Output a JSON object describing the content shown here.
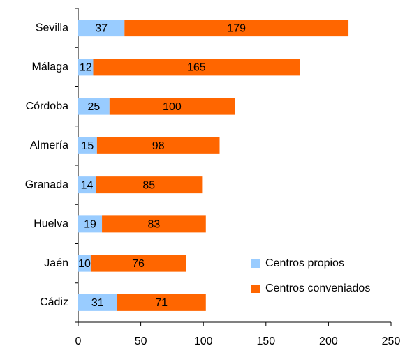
{
  "chart_data": {
    "type": "stacked_barh",
    "categories": [
      "Sevilla",
      "Málaga",
      "Córdoba",
      "Almería",
      "Granada",
      "Huelva",
      "Jaén",
      "Cádiz"
    ],
    "series": [
      {
        "name": "Centros propios",
        "color": "#99ccff",
        "values": [
          37,
          12,
          25,
          15,
          14,
          19,
          10,
          31
        ]
      },
      {
        "name": "Centros conveniados",
        "color": "#ff6600",
        "values": [
          179,
          165,
          100,
          98,
          85,
          83,
          76,
          71
        ]
      }
    ],
    "xlim": [
      0,
      250
    ],
    "xticks": [
      0,
      50,
      100,
      150,
      200,
      250
    ],
    "legend": "lower right"
  }
}
